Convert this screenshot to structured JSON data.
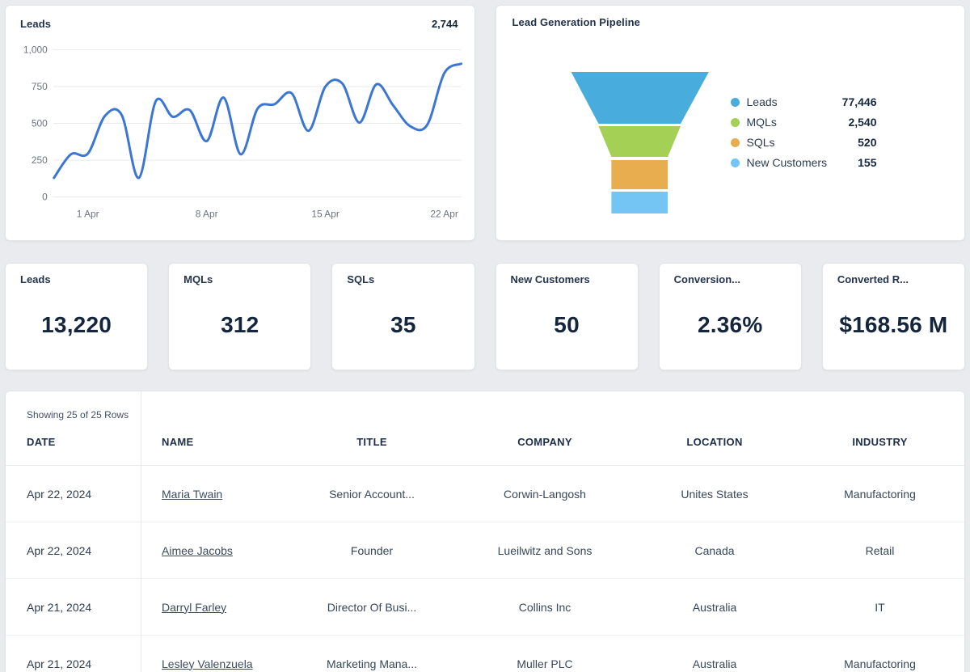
{
  "chart_data": [
    {
      "type": "line",
      "title": "Leads",
      "total_label": "2,744",
      "values": [
        130,
        290,
        295,
        550,
        555,
        130,
        650,
        545,
        590,
        380,
        675,
        290,
        600,
        630,
        705,
        450,
        750,
        770,
        505,
        765,
        620,
        480,
        490,
        840,
        905
      ],
      "ylim": [
        0,
        1000
      ],
      "y_ticks": [
        0,
        250,
        500,
        750,
        1000
      ],
      "y_tick_labels": [
        "0",
        "250",
        "500",
        "750",
        "1,000"
      ],
      "x_tick_indices": [
        2,
        9,
        16,
        23
      ],
      "x_tick_labels": [
        "1 Apr",
        "8 Apr",
        "15 Apr",
        "22 Apr"
      ],
      "line_color": "#3b76d4",
      "grid": "horizontal",
      "legend_position": "none"
    },
    {
      "type": "funnel",
      "title": "Lead Generation Pipeline",
      "stages": [
        {
          "label": "Leads",
          "value": 77446,
          "value_label": "77,446",
          "color": "#48acdc"
        },
        {
          "label": "MQLs",
          "value": 2540,
          "value_label": "2,540",
          "color": "#a3d055"
        },
        {
          "label": "SQLs",
          "value": 520,
          "value_label": "520",
          "color": "#e8ad4e"
        },
        {
          "label": "New Customers",
          "value": 155,
          "value_label": "155",
          "color": "#74c5f4"
        }
      ],
      "legend_position": "right"
    }
  ],
  "kpis": [
    {
      "label": "Leads",
      "value": "13,220"
    },
    {
      "label": "MQLs",
      "value": "312"
    },
    {
      "label": "SQLs",
      "value": "35"
    },
    {
      "label": "New Customers",
      "value": "50"
    },
    {
      "label": "Conversion...",
      "value": "2.36%"
    },
    {
      "label": "Converted R...",
      "value": "$168.56 M"
    }
  ],
  "table": {
    "summary": "Showing 25 of 25 Rows",
    "columns": [
      "DATE",
      "NAME",
      "TITLE",
      "COMPANY",
      "LOCATION",
      "INDUSTRY"
    ],
    "rows": [
      {
        "date": "Apr 22, 2024",
        "name": "Maria Twain",
        "title": "Senior Account...",
        "company": "Corwin-Langosh",
        "location": "Unites States",
        "industry": "Manufactoring"
      },
      {
        "date": "Apr 22, 2024",
        "name": "Aimee Jacobs",
        "title": "Founder",
        "company": "Lueilwitz and Sons",
        "location": "Canada",
        "industry": "Retail"
      },
      {
        "date": "Apr 21, 2024",
        "name": "Darryl Farley",
        "title": "Director Of Busi...",
        "company": "Collins Inc",
        "location": "Australia",
        "industry": "IT"
      },
      {
        "date": "Apr 21, 2024",
        "name": "Lesley Valenzuela",
        "title": "Marketing Mana...",
        "company": "Muller PLC",
        "location": "Australia",
        "industry": "Manufactoring"
      }
    ]
  },
  "colors": {
    "page_background": "#e9ebee",
    "card_background": "#ffffff",
    "line_chart_blue": "#3b76d4",
    "dark_navy_text": "#15263c",
    "axis_gray": "#6d737e",
    "grid_gray": "#e9eaee"
  }
}
